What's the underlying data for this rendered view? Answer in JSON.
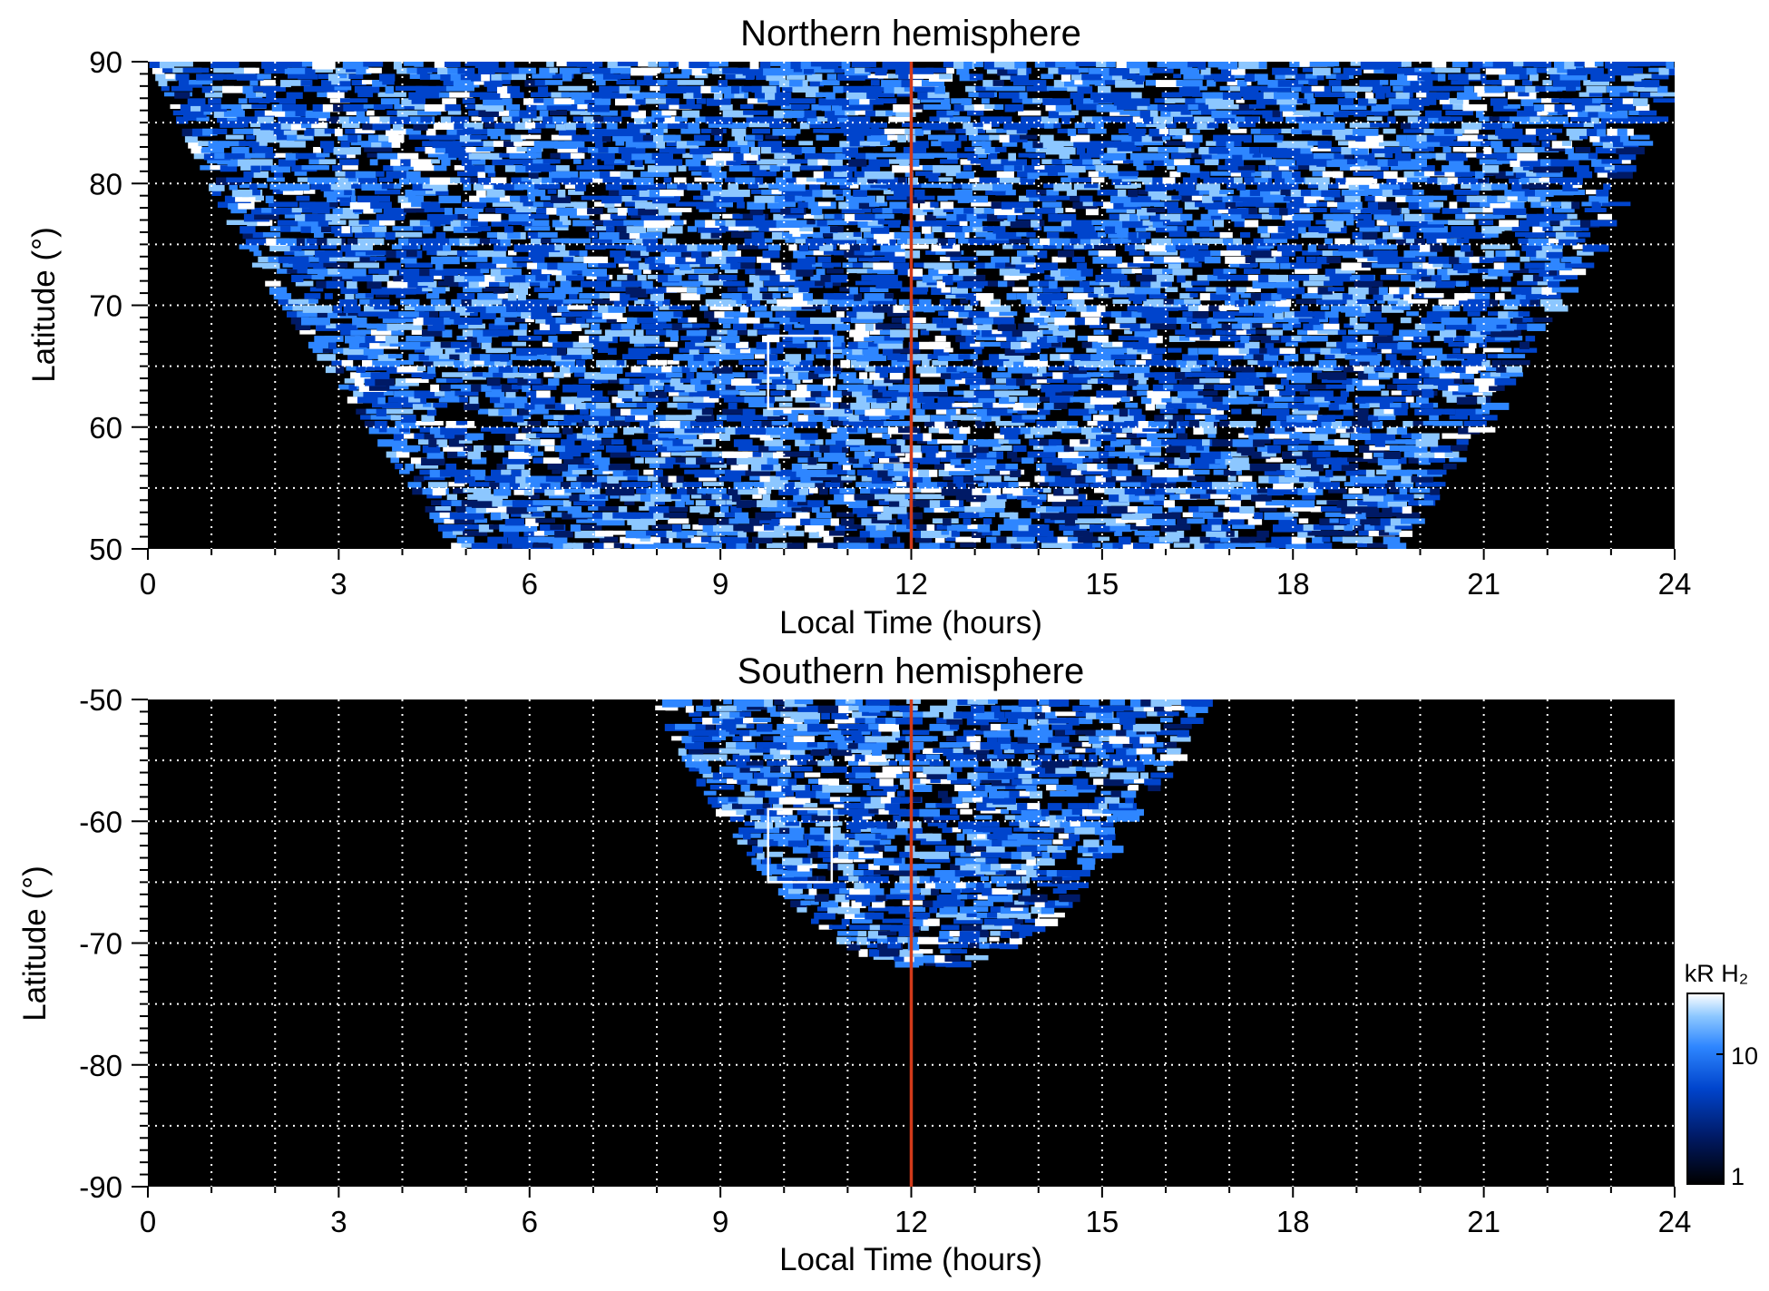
{
  "chart_data": [
    {
      "type": "heatmap",
      "title": "Northern hemisphere",
      "xlabel": "Local Time (hours)",
      "ylabel": "Latitude (°)",
      "xlim": [
        0,
        24
      ],
      "ylim": [
        50,
        90
      ],
      "xticks": [
        "0",
        "3",
        "6",
        "9",
        "12",
        "15",
        "18",
        "21",
        "24"
      ],
      "yticks": [
        "50",
        "60",
        "70",
        "80",
        "90"
      ],
      "grid": true,
      "marker_line": {
        "x": 12,
        "color": "#d23a1a"
      },
      "highlight_box": {
        "x0": 9.75,
        "x1": 10.75,
        "y0": 61.5,
        "y1": 67.5
      },
      "coverage": "observed emission spans roughly 5–19.5 h at 50°, widening to nearly 0–24 h poleward of ~75°"
    },
    {
      "type": "heatmap",
      "title": "Southern hemisphere",
      "xlabel": "Local Time (hours)",
      "ylabel": "Latitude (°)",
      "xlim": [
        0,
        24
      ],
      "ylim": [
        -90,
        -50
      ],
      "xticks": [
        "0",
        "3",
        "6",
        "9",
        "12",
        "15",
        "18",
        "21",
        "24"
      ],
      "yticks": [
        "-50",
        "-60",
        "-70",
        "-80",
        "-90"
      ],
      "grid": true,
      "marker_line": {
        "x": 12,
        "color": "#d23a1a"
      },
      "highlight_box": {
        "x0": 9.75,
        "x1": 10.75,
        "y0": -65,
        "y1": -59
      },
      "coverage": "observed emission spans roughly 8–16.5 h at -50°, narrowing to ~12 h near -72°"
    }
  ],
  "colorbar": {
    "label": "kR H₂",
    "ticks": [
      "1",
      "10"
    ],
    "scale": "log",
    "colors": [
      "#000000",
      "#001a66",
      "#0044cc",
      "#2e86ff",
      "#8cc7ff",
      "#ffffff"
    ]
  }
}
